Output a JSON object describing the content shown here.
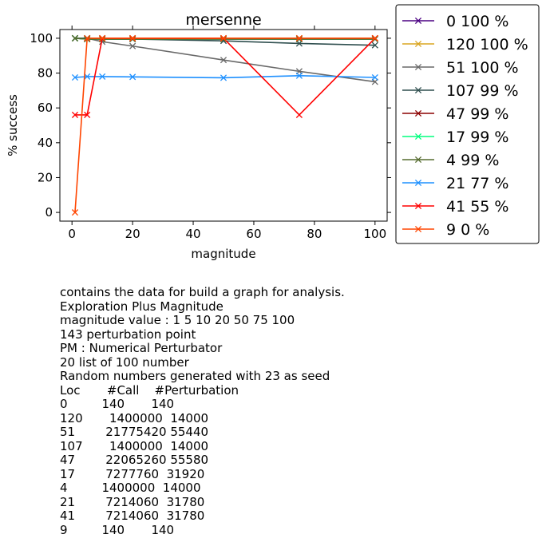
{
  "chart_data": {
    "type": "line",
    "title": "mersenne",
    "xlabel": "magnitude",
    "ylabel": "% success",
    "xlim": [
      -4,
      104
    ],
    "ylim": [
      -5,
      105
    ],
    "xticks": [
      0,
      20,
      40,
      60,
      80,
      100
    ],
    "yticks": [
      0,
      20,
      40,
      60,
      80,
      100
    ],
    "grid": false,
    "legend_position": "outside-right",
    "x": [
      1,
      5,
      10,
      20,
      50,
      75,
      100
    ],
    "series": [
      {
        "name": "0 100 %",
        "color": "#4b0082",
        "values": [
          100,
          100,
          100,
          100,
          100,
          100,
          100
        ]
      },
      {
        "name": "120 100 %",
        "color": "#daa520",
        "values": [
          100,
          100,
          100,
          100,
          100,
          100,
          100
        ]
      },
      {
        "name": "51 100 %",
        "color": "#696969",
        "values": [
          100,
          100,
          98,
          95.5,
          87.5,
          81,
          75
        ]
      },
      {
        "name": "107 99 %",
        "color": "#2f4f4f",
        "values": [
          100,
          100,
          99.5,
          99.5,
          98.5,
          97,
          96
        ]
      },
      {
        "name": "47 99 %",
        "color": "#8b0000",
        "values": [
          100,
          99.5,
          99.5,
          99.5,
          99.5,
          99.5,
          99.5
        ]
      },
      {
        "name": "17 99 %",
        "color": "#00ff7f",
        "values": [
          100,
          99.5,
          99.5,
          99.5,
          99.5,
          99.5,
          99.5
        ]
      },
      {
        "name": "4 99 %",
        "color": "#556b2f",
        "values": [
          100,
          99.5,
          99.5,
          99.5,
          99.5,
          99.5,
          99.5
        ]
      },
      {
        "name": "21 77 %",
        "color": "#1e90ff",
        "values": [
          77.5,
          78,
          78,
          77.8,
          77.3,
          78.5,
          77.5
        ]
      },
      {
        "name": "41 55 %",
        "color": "#ff0000",
        "values": [
          56,
          56,
          100,
          100,
          100,
          56,
          100
        ]
      },
      {
        "name": "9 0 %",
        "color": "#ff4500",
        "values": [
          0,
          100,
          100,
          100,
          100,
          100,
          100
        ]
      }
    ]
  },
  "notes": [
    "contains the data for build a graph for analysis.",
    "Exploration Plus Magnitude",
    "magnitude value : 1 5 10 20 50 75 100",
    "143 perturbation point",
    "PM : Numerical Perturbator",
    "20 list of 100 number",
    "Random numbers generated with 23 as seed",
    "Loc       #Call    #Perturbation",
    "0         140       140",
    "120       1400000  14000",
    "51        21775420 55440",
    "107       1400000  14000",
    "47        22065260 55580",
    "17        7277760  31920",
    "4         1400000  14000",
    "21        7214060  31780",
    "41        7214060  31780",
    "9         140       140"
  ]
}
